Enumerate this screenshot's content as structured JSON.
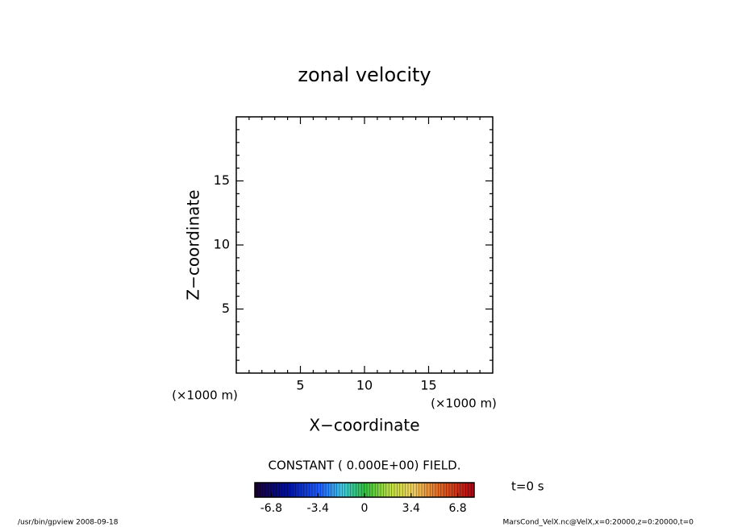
{
  "chart_data": {
    "type": "contour",
    "title": "zonal velocity",
    "xlabel": "X−coordinate",
    "ylabel": "Z−coordinate",
    "xunit": "(×1000 m)",
    "yunit": "(×1000 m)",
    "xlim": [
      0,
      20
    ],
    "ylim": [
      0,
      20
    ],
    "xticks": [
      5,
      10,
      15
    ],
    "yticks": [
      5,
      10,
      15
    ],
    "xminorticks": [
      1,
      2,
      3,
      4,
      6,
      7,
      8,
      9,
      11,
      12,
      13,
      14,
      16,
      17,
      18,
      19
    ],
    "yminorticks": [
      1,
      2,
      3,
      4,
      6,
      7,
      8,
      9,
      11,
      12,
      13,
      14,
      16,
      17,
      18,
      19
    ],
    "note": "CONSTANT ( 0.000E+00) FIELD.",
    "time_label": "t=0 s",
    "colorbar": {
      "lim": [
        -8,
        8
      ],
      "ticks": [
        -6.8,
        -3.4,
        0,
        3.4,
        6.8
      ]
    },
    "footer_left": "/usr/bin/gpview   2008-09-18",
    "footer_right": "MarsCond_VelX.nc@VelX,x=0:20000,z=0:20000,t=0"
  }
}
